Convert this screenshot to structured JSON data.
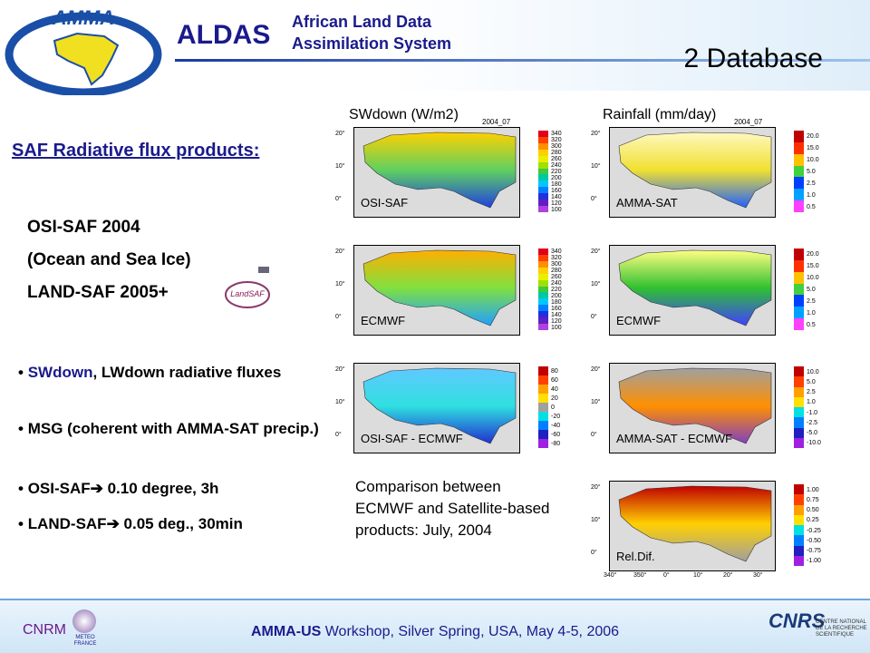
{
  "header": {
    "logo": "AMMA",
    "title": "ALDAS",
    "subtitle_line1": "African Land Data",
    "subtitle_line2": "Assimilation System",
    "section": "2 Database"
  },
  "left": {
    "heading": "SAF Radiative flux products:",
    "products": [
      "OSI-SAF 2004",
      "(Ocean and Sea Ice)",
      "LAND-SAF 2005+"
    ],
    "landsaf_logo": "LandSAF",
    "bullet1_highlight": "SWdown",
    "bullet1_rest": ", LWdown radiative fluxes",
    "bullets": [
      "MSG (coherent with AMMA-SAT precip.)",
      "OSI-SAF➔ 0.10 degree, 3h",
      "LAND-SAF➔ 0.05 deg., 30min"
    ]
  },
  "maps": {
    "sw_title": "SWdown (W/m2)",
    "rain_title": "Rainfall (mm/day)",
    "date": "2004_07",
    "lat_labels": [
      "20°",
      "10°",
      "0°"
    ],
    "lon_labels": [
      "340°",
      "350°",
      "0°",
      "10°",
      "20°",
      "30°"
    ],
    "panels": [
      {
        "label": "OSI-SAF",
        "colorbar": [
          "340",
          "320",
          "300",
          "280",
          "260",
          "240",
          "220",
          "200",
          "180",
          "160",
          "140",
          "120",
          "100"
        ]
      },
      {
        "label": "AMMA-SAT",
        "colorbar": [
          "20.0",
          "15.0",
          "10.0",
          "5.0",
          "2.5",
          "1.0",
          "0.5"
        ]
      },
      {
        "label": "ECMWF",
        "colorbar": [
          "340",
          "320",
          "300",
          "280",
          "260",
          "240",
          "220",
          "200",
          "180",
          "160",
          "140",
          "120",
          "100"
        ]
      },
      {
        "label": "ECMWF",
        "colorbar": [
          "20.0",
          "15.0",
          "10.0",
          "5.0",
          "2.5",
          "1.0",
          "0.5"
        ]
      },
      {
        "label": "OSI-SAF - ECMWF",
        "colorbar": [
          "80",
          "60",
          "40",
          "20",
          "0",
          "-20",
          "-40",
          "-60",
          "-80"
        ]
      },
      {
        "label": "AMMA-SAT - ECMWF",
        "colorbar": [
          "10.0",
          "5.0",
          "2.5",
          "1.0",
          "-1.0",
          "-2.5",
          "-5.0",
          "-10.0"
        ]
      },
      {
        "label": "Rel.Dif.",
        "colorbar": [
          "1.00",
          "0.75",
          "0.50",
          "0.25",
          "-0.25",
          "-0.50",
          "-0.75",
          "-1.00"
        ]
      }
    ]
  },
  "comparison": "Comparison between ECMWF and Satellite-based products: July, 2004",
  "footer": {
    "cnrm": "CNRM",
    "meteo": "METEO FRANCE",
    "event_bold": "AMMA-US",
    "event_rest": " Workshop, Silver Spring, USA, May 4-5, 2006",
    "cnrs": "CNRS",
    "cnrs_name": "CENTRE NATIONAL DE LA RECHERCHE SCIENTIFIQUE"
  }
}
